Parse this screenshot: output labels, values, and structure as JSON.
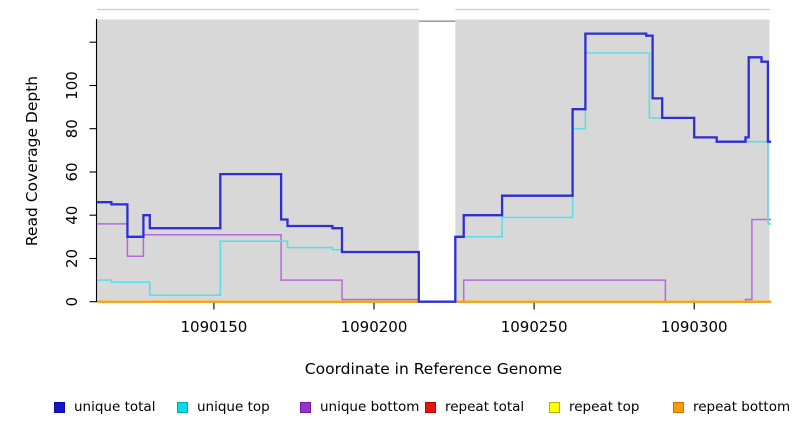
{
  "chart_data": {
    "type": "line",
    "step": true,
    "title": "",
    "xlabel": "Coordinate in Reference Genome",
    "ylabel": "Read Coverage Depth",
    "xlim": [
      1090113.5,
      1090323.5
    ],
    "ylim": [
      0,
      130.5
    ],
    "grid": false,
    "legend_position": "bottom",
    "plot_bg": "#d8d8d8",
    "page_bg": "#ffffff",
    "axis_color": "#000000",
    "frame_top_line_color": "#c9c9c9",
    "mask_bridge_color": "#8f8f8f",
    "x_ticks": [
      1090150,
      1090200,
      1090250,
      1090300
    ],
    "x_tick_labels": [
      "1090150",
      "1090200",
      "1090250",
      "1090300"
    ],
    "y_ticks": [
      0,
      20,
      40,
      60,
      80,
      100,
      120
    ],
    "y_tick_labels": [
      "0",
      "20",
      "40",
      "60",
      "80",
      "100",
      ""
    ],
    "mask_region": {
      "x0": 1090214,
      "x1": 1090225.4,
      "color": "#ffffff"
    },
    "series": [
      {
        "name": "repeat total",
        "color": "#d42222",
        "width": 2,
        "segments": [
          [
            [
              1090113.5,
              0
            ],
            [
              1090214,
              0
            ]
          ],
          [
            [
              1090225.4,
              0
            ],
            [
              1090324,
              0
            ]
          ]
        ]
      },
      {
        "name": "repeat top",
        "color": "#f5f500",
        "width": 2,
        "segments": [
          [
            [
              1090113.5,
              0
            ],
            [
              1090214,
              0
            ]
          ],
          [
            [
              1090225.4,
              0
            ],
            [
              1090324,
              0
            ]
          ]
        ]
      },
      {
        "name": "unique bottom",
        "color": "#b868da",
        "width": 1.5,
        "segments": [
          [
            [
              1090113.5,
              36
            ],
            [
              1090123,
              21
            ],
            [
              1090128,
              31
            ],
            [
              1090171,
              10
            ],
            [
              1090190,
              1
            ],
            [
              1090214,
              0
            ]
          ],
          [
            [
              1090225.4,
              0
            ],
            [
              1090228,
              10
            ],
            [
              1090291,
              0
            ],
            [
              1090316,
              1
            ],
            [
              1090318,
              38
            ],
            [
              1090324,
              38
            ]
          ]
        ]
      },
      {
        "name": "repeat bottom",
        "color": "#ff9e0e",
        "width": 2,
        "segments": [
          [
            [
              1090113.5,
              0
            ],
            [
              1090214,
              0
            ]
          ],
          [
            [
              1090225.4,
              0
            ],
            [
              1090324,
              0
            ]
          ]
        ]
      },
      {
        "name": "unique top",
        "color": "#5ddde9",
        "width": 1.6,
        "segments": [
          [
            [
              1090113.5,
              10
            ],
            [
              1090118,
              9
            ],
            [
              1090130,
              3
            ],
            [
              1090152,
              28
            ],
            [
              1090173,
              25
            ],
            [
              1090187,
              24
            ],
            [
              1090190,
              23
            ],
            [
              1090214,
              0
            ]
          ],
          [
            [
              1090225.4,
              0
            ],
            [
              1090225.4,
              30
            ],
            [
              1090240,
              39
            ],
            [
              1090262,
              80
            ],
            [
              1090266,
              115
            ],
            [
              1090286,
              85
            ],
            [
              1090300,
              76
            ],
            [
              1090307,
              74
            ],
            [
              1090323,
              36
            ],
            [
              1090324,
              36
            ]
          ]
        ]
      },
      {
        "name": "unique total",
        "color": "#2e2ed6",
        "width": 2.3,
        "segments": [
          [
            [
              1090113.5,
              46
            ],
            [
              1090118,
              45
            ],
            [
              1090123,
              30
            ],
            [
              1090128,
              40
            ],
            [
              1090130,
              34
            ],
            [
              1090152,
              59
            ],
            [
              1090171,
              38
            ],
            [
              1090173,
              35
            ],
            [
              1090187,
              34
            ],
            [
              1090190,
              23
            ],
            [
              1090214,
              0
            ],
            [
              1090225.4,
              30
            ],
            [
              1090228,
              40
            ],
            [
              1090240,
              49
            ],
            [
              1090262,
              89
            ],
            [
              1090266,
              124
            ],
            [
              1090285,
              123
            ],
            [
              1090287,
              94
            ],
            [
              1090290,
              85
            ],
            [
              1090300,
              76
            ],
            [
              1090307,
              74
            ],
            [
              1090316,
              76
            ],
            [
              1090317,
              113
            ],
            [
              1090321,
              111
            ],
            [
              1090323,
              74
            ],
            [
              1090324,
              74
            ]
          ]
        ]
      }
    ],
    "legend": [
      {
        "label": "unique total",
        "fill": "#1414cc",
        "border": "#0a0a99"
      },
      {
        "label": "unique top",
        "fill": "#00e0ea",
        "border": "#0aa6b0"
      },
      {
        "label": "unique bottom",
        "fill": "#9932cc",
        "border": "#70209c"
      },
      {
        "label": "repeat total",
        "fill": "#ee1111",
        "border": "#a50d0d"
      },
      {
        "label": "repeat top",
        "fill": "#ffff00",
        "border": "#b0b000"
      },
      {
        "label": "repeat bottom",
        "fill": "#ff9900",
        "border": "#c27000"
      }
    ]
  }
}
